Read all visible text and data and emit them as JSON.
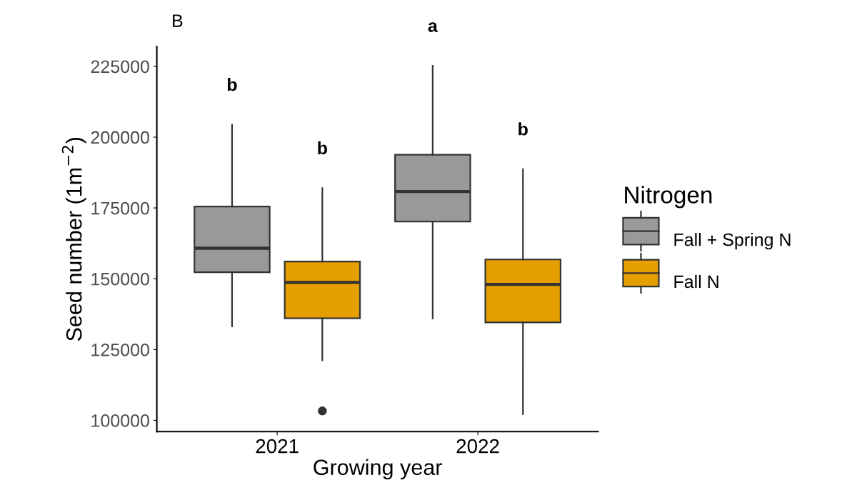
{
  "chart_data": {
    "type": "box",
    "xlabel": "Growing year",
    "ylabel": "Seed number (1m$^{−2}$)",
    "legend_title": "Nitrogen",
    "legend": "right",
    "grid": false,
    "categories": [
      "2021",
      "2022"
    ],
    "ylim": [
      96000,
      232000
    ],
    "yticks": [
      100000,
      125000,
      150000,
      175000,
      200000,
      225000
    ],
    "series": [
      {
        "name": "Fall + Spring N",
        "color": "#999999",
        "boxes": [
          {
            "low": 133200,
            "q1": 152300,
            "median": 160800,
            "q3": 175500,
            "high": 204400
          },
          {
            "low": 136000,
            "q1": 170200,
            "median": 180800,
            "q3": 193800,
            "high": 225200
          }
        ]
      },
      {
        "name": "Fall N",
        "color": "#e69f00",
        "boxes": [
          {
            "low": 121200,
            "q1": 136000,
            "median": 148700,
            "q3": 156100,
            "high": 182000,
            "outliers": [
              103300
            ]
          },
          {
            "low": 102200,
            "q1": 134600,
            "median": 148000,
            "q3": 156800,
            "high": 188700
          }
        ]
      }
    ],
    "annotations": [
      "B",
      "b",
      "b",
      "a",
      "b"
    ]
  }
}
